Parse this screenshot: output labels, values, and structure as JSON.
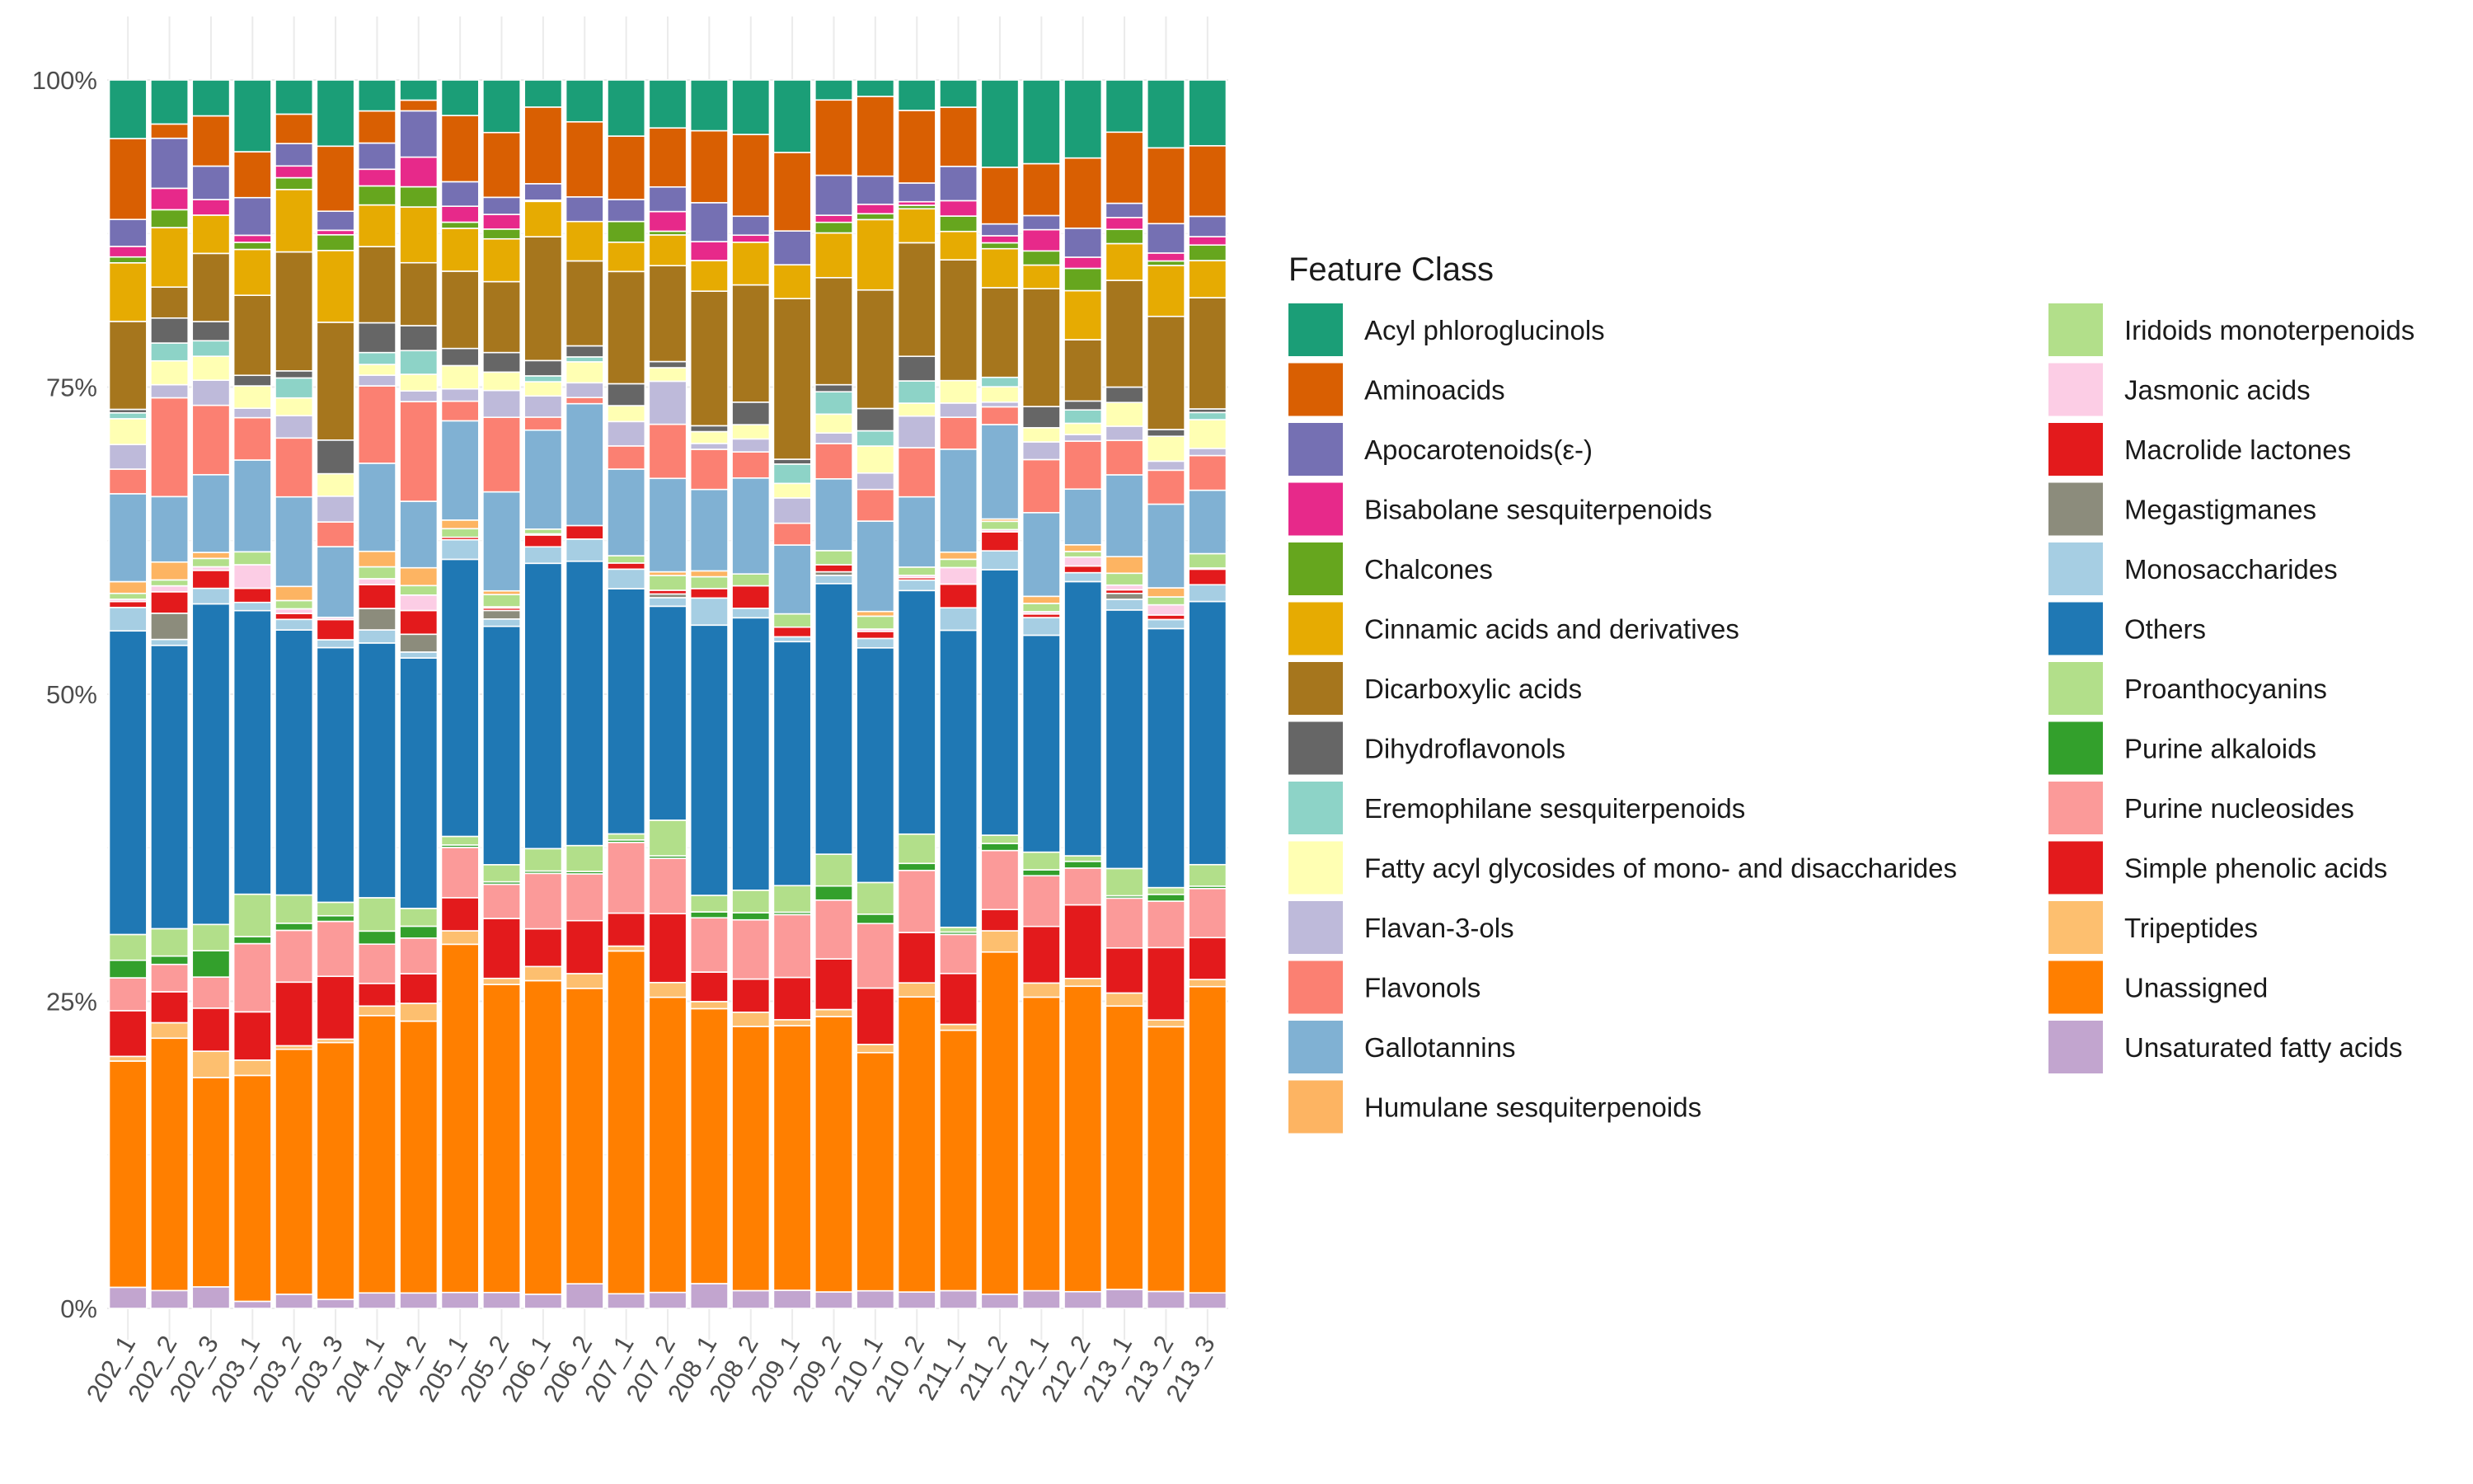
{
  "chart_data": {
    "type": "bar",
    "stacked": true,
    "normalized": true,
    "title": "",
    "xlabel": "",
    "ylabel": "",
    "ylim": [
      0,
      100
    ],
    "y_ticks": [
      "0%",
      "25%",
      "50%",
      "75%",
      "100%"
    ],
    "grid": true,
    "legend_title": "Feature Class",
    "legend_position": "right",
    "categories": [
      "202_1",
      "202_2",
      "202_3",
      "203_1",
      "203_2",
      "203_3",
      "204_1",
      "204_2",
      "205_1",
      "205_2",
      "206_1",
      "206_2",
      "207_1",
      "207_2",
      "208_1",
      "208_2",
      "209_1",
      "209_2",
      "210_1",
      "210_2",
      "211_1",
      "211_2",
      "212_1",
      "212_2",
      "213_1",
      "213_2",
      "213_3"
    ],
    "series": [
      {
        "name": "Unsaturated fatty acids",
        "color": "#c2a5cf",
        "values": [
          1.8,
          1.5,
          1.8,
          0.6,
          1.2,
          0.8,
          1.3,
          1.3,
          1.3,
          1.3,
          1.2,
          2.0,
          1.2,
          1.3,
          2.1,
          1.5,
          1.5,
          1.4,
          1.5,
          1.4,
          1.5,
          1.2,
          1.5,
          1.5,
          1.6,
          1.5,
          1.3
        ]
      },
      {
        "name": "Unassigned",
        "color": "#ff7f00",
        "values": [
          19.3,
          21.2,
          17.5,
          19.2,
          20.8,
          22.9,
          23.3,
          22.9,
          28.4,
          25.2,
          26.6,
          24.0,
          28.1,
          24.0,
          23.3,
          22.3,
          21.9,
          23.4,
          20.3,
          25.2,
          22.0,
          29.0,
          24.9,
          27.4,
          23.9,
          23.4,
          25.6
        ]
      },
      {
        "name": "Tripeptides",
        "color": "#fdbf6f",
        "values": [
          0.4,
          1.3,
          2.2,
          1.3,
          0.3,
          0.3,
          0.8,
          1.5,
          1.1,
          0.5,
          1.2,
          1.2,
          0.4,
          1.2,
          0.6,
          1.2,
          0.5,
          0.6,
          0.7,
          1.2,
          0.5,
          1.8,
          1.2,
          0.7,
          1.1,
          0.6,
          0.6
        ]
      },
      {
        "name": "Simple phenolic acids",
        "color": "#e31a1c",
        "values": [
          3.9,
          2.6,
          3.6,
          4.1,
          5.4,
          5.6,
          1.9,
          2.5,
          2.7,
          4.9,
          3.2,
          4.3,
          2.7,
          5.6,
          2.5,
          2.8,
          3.5,
          4.3,
          4.8,
          4.3,
          4.3,
          1.8,
          4.8,
          6.6,
          3.8,
          6.4,
          3.5
        ]
      },
      {
        "name": "Purine nucleosides",
        "color": "#fb9a99",
        "values": [
          2.8,
          2.3,
          2.6,
          5.8,
          4.4,
          4.9,
          3.3,
          3.0,
          4.1,
          2.8,
          4.7,
          3.8,
          5.8,
          4.5,
          4.6,
          5.0,
          5.2,
          5.0,
          5.5,
          5.3,
          3.3,
          5.0,
          4.3,
          3.3,
          4.2,
          4.1,
          4.1
        ]
      },
      {
        "name": "Purine alkaloids",
        "color": "#33a02c",
        "values": [
          1.5,
          0.7,
          2.2,
          0.6,
          0.6,
          0.5,
          1.1,
          1.0,
          0.2,
          0.2,
          0.2,
          0.2,
          0.2,
          0.2,
          0.5,
          0.6,
          0.2,
          1.2,
          0.8,
          0.6,
          0.2,
          0.6,
          0.5,
          0.6,
          0.2,
          0.6,
          0.2
        ]
      },
      {
        "name": "Proanthocyanins",
        "color": "#b2df8a",
        "values": [
          2.2,
          2.3,
          2.2,
          3.6,
          2.4,
          1.2,
          2.8,
          1.5,
          0.7,
          1.4,
          1.9,
          2.1,
          0.5,
          2.9,
          1.4,
          1.9,
          2.2,
          2.7,
          2.7,
          2.5,
          0.4,
          0.7,
          1.5,
          0.5,
          2.3,
          0.6,
          1.8
        ]
      },
      {
        "name": "Others",
        "color": "#1f78b4",
        "values": [
          25.9,
          23.8,
          26.8,
          24.1,
          22.5,
          22.7,
          21.4,
          21.1,
          22.6,
          19.5,
          24.2,
          23.1,
          20.1,
          17.4,
          22.9,
          23.0,
          20.2,
          23.0,
          20.0,
          20.8,
          25.1,
          22.5,
          18.4,
          24.6,
          21.8,
          22.9,
          22.0
        ]
      },
      {
        "name": "Monosaccharides",
        "color": "#a6cee3",
        "values": [
          2.0,
          0.5,
          1.3,
          0.7,
          0.9,
          0.7,
          1.1,
          0.5,
          1.6,
          0.6,
          1.4,
          1.8,
          1.6,
          0.7,
          2.3,
          0.8,
          0.4,
          0.7,
          0.8,
          0.9,
          1.9,
          1.6,
          1.5,
          0.8,
          0.9,
          0.8,
          1.4
        ]
      },
      {
        "name": "Megastigmanes",
        "color": "#8c8c7c",
        "values": [
          0,
          2.2,
          0,
          0,
          0,
          0,
          1.8,
          1.5,
          0,
          0.7,
          0,
          0,
          0,
          0.3,
          0,
          0,
          0,
          0.3,
          0,
          0,
          0,
          0,
          0,
          0,
          0.5,
          0,
          0
        ]
      },
      {
        "name": "Macrolide lactones",
        "color": "#e31a1c",
        "values": [
          0.5,
          1.8,
          1.5,
          1.2,
          0.5,
          1.8,
          2.0,
          2.0,
          0.2,
          0.2,
          1.0,
          1.1,
          0.5,
          0.3,
          0.8,
          1.9,
          0.8,
          0.6,
          0.6,
          0.2,
          2.0,
          1.6,
          0.3,
          0.6,
          0.3,
          0.4,
          1.3
        ]
      },
      {
        "name": "Jasmonic acids",
        "color": "#fccde5",
        "values": [
          0.2,
          0.5,
          0.3,
          2.0,
          0.4,
          0.2,
          0.5,
          1.3,
          0,
          0.1,
          0.1,
          0,
          0,
          0,
          0,
          0,
          0,
          0,
          0.2,
          0.2,
          1.4,
          0.2,
          0.2,
          0.8,
          0.4,
          0.9,
          0.1
        ]
      },
      {
        "name": "Iridoids monoterpenoids",
        "color": "#b2df8a",
        "values": [
          0.5,
          0.5,
          0.7,
          1.1,
          0.7,
          0,
          1.0,
          0.8,
          0.7,
          1.0,
          0.4,
          0,
          0.6,
          1.2,
          1.0,
          1.0,
          1.1,
          1.2,
          1.1,
          0.7,
          0.7,
          0.7,
          0.7,
          0.5,
          1.0,
          0.7,
          1.2
        ]
      },
      {
        "name": "Humulane sesquiterpenoids",
        "color": "#fdb462",
        "values": [
          1.0,
          1.5,
          0.5,
          0,
          1.2,
          0,
          1.3,
          1.5,
          0.7,
          0.3,
          0,
          0,
          0,
          0.3,
          0.5,
          0,
          0,
          0,
          0.4,
          0,
          0.6,
          0.2,
          0.6,
          0.6,
          1.4,
          0.8,
          0
        ]
      },
      {
        "name": "Gallotannins",
        "color": "#80b1d3",
        "values": [
          7.5,
          5.5,
          6.5,
          7.8,
          7.6,
          6.3,
          7.4,
          5.6,
          8.1,
          8.1,
          8.4,
          9.9,
          7.1,
          7.6,
          6.9,
          8.1,
          5.7,
          6.1,
          7.7,
          6.0,
          8.7,
          8.0,
          7.1,
          5.0,
          6.9,
          7.4,
          5.3
        ]
      },
      {
        "name": "Flavonols",
        "color": "#fb8072",
        "values": [
          2.1,
          8.3,
          5.8,
          3.6,
          5.0,
          2.2,
          6.5,
          8.4,
          1.6,
          6.1,
          1.1,
          0.5,
          1.9,
          4.4,
          3.4,
          2.2,
          1.8,
          3.0,
          2.7,
          4.2,
          2.7,
          1.5,
          4.5,
          4.3,
          2.9,
          3.0,
          2.9
        ]
      },
      {
        "name": "Flavan-3-ols",
        "color": "#bebada",
        "values": [
          2.1,
          1.1,
          2.1,
          0.8,
          1.9,
          2.3,
          0.9,
          0.9,
          1.0,
          2.2,
          1.8,
          1.2,
          2.0,
          3.5,
          0.5,
          1.1,
          2.1,
          0.9,
          1.4,
          2.7,
          1.2,
          0.4,
          1.5,
          0.6,
          1.2,
          0.8,
          0.6
        ]
      },
      {
        "name": "Fatty acyl glycosides of mono- and disaccharides",
        "color": "#ffffb3",
        "values": [
          2.2,
          2.0,
          2.0,
          1.9,
          1.5,
          2.0,
          0.9,
          1.4,
          1.9,
          1.5,
          1.2,
          1.7,
          1.3,
          1.1,
          1.0,
          1.2,
          1.2,
          1.6,
          2.3,
          1.1,
          1.9,
          1.3,
          1.2,
          1.0,
          2.0,
          2.2,
          2.4
        ]
      },
      {
        "name": "Eremophilane sesquiterpenoids",
        "color": "#8dd3c7",
        "values": [
          0.5,
          1.5,
          1.3,
          0,
          1.7,
          0,
          1.0,
          2.0,
          0,
          0,
          0.5,
          0.4,
          0,
          0,
          0,
          0,
          1.6,
          1.9,
          1.3,
          1.9,
          0,
          0.8,
          0,
          1.2,
          0,
          0,
          0.6
        ]
      },
      {
        "name": "Dihydroflavonols",
        "color": "#666666",
        "values": [
          0.3,
          2.1,
          1.6,
          0.9,
          0.6,
          3.0,
          2.5,
          2.1,
          1.4,
          1.6,
          1.3,
          0.9,
          1.8,
          0.5,
          0.5,
          1.9,
          0.4,
          0.6,
          1.9,
          2.1,
          0,
          0,
          1.8,
          0.8,
          1.3,
          0.6,
          0.3
        ]
      },
      {
        "name": "Dicarboxylic acids",
        "color": "#a6761d",
        "values": [
          7.5,
          2.6,
          5.7,
          6.8,
          10.1,
          10.5,
          6.4,
          5.3,
          6.3,
          5.8,
          10.5,
          6.9,
          9.2,
          7.8,
          11.4,
          9.9,
          13.3,
          9.1,
          10.1,
          9.7,
          10.2,
          7.6,
          10.0,
          5.5,
          9.0,
          10.0,
          9.3
        ]
      },
      {
        "name": "Cinnamic acids and derivatives",
        "color": "#e6ab02",
        "values": [
          5.0,
          5.0,
          3.2,
          3.9,
          5.3,
          6.4,
          3.5,
          4.7,
          3.5,
          3.5,
          3.0,
          3.2,
          2.4,
          2.5,
          2.6,
          3.6,
          2.8,
          3.8,
          6.0,
          2.9,
          2.4,
          3.3,
          2.0,
          4.4,
          3.1,
          4.5,
          3.1
        ]
      },
      {
        "name": "Chalcones",
        "color": "#66a61e",
        "values": [
          0.5,
          1.5,
          0,
          0.6,
          1.0,
          1.4,
          1.6,
          1.7,
          0.5,
          0.8,
          0,
          0,
          1.7,
          0.3,
          0,
          0,
          0,
          0.9,
          0.5,
          0.3,
          1.3,
          0.5,
          1.2,
          2.0,
          1.2,
          0.4,
          1.3
        ]
      },
      {
        "name": "Bisabolane sesquiterpenoids",
        "color": "#e7298a",
        "values": [
          0.9,
          1.8,
          1.3,
          0.6,
          1.0,
          0.4,
          1.4,
          2.5,
          1.3,
          1.2,
          0.1,
          0,
          0,
          1.6,
          1.6,
          0.6,
          0,
          0.6,
          0.8,
          0.3,
          1.3,
          0.6,
          1.8,
          1.0,
          1.0,
          0.7,
          0.7
        ]
      },
      {
        "name": "Apocarotenoids(ε-)",
        "color": "#7570b3",
        "values": [
          2.3,
          4.2,
          2.8,
          3.2,
          1.9,
          1.7,
          2.2,
          3.9,
          2.0,
          1.4,
          1.4,
          2.0,
          1.8,
          2.0,
          3.3,
          1.6,
          2.8,
          3.4,
          2.4,
          1.6,
          2.9,
          1.0,
          1.2,
          2.6,
          1.2,
          2.6,
          1.7
        ]
      },
      {
        "name": "Aminoacids",
        "color": "#d95f02",
        "values": [
          6.9,
          1.2,
          4.2,
          3.9,
          2.5,
          5.8,
          2.7,
          0.9,
          5.4,
          5.3,
          6.5,
          6.1,
          5.2,
          4.8,
          6.1,
          6.9,
          6.5,
          6.4,
          6.8,
          6.2,
          5.0,
          4.8,
          4.4,
          6.3,
          6.0,
          6.7,
          5.9
        ]
      },
      {
        "name": "Acyl phloroglucinols",
        "color": "#1b9e77",
        "values": [
          5.0,
          3.7,
          3.0,
          6.1,
          2.9,
          5.9,
          2.6,
          1.7,
          2.9,
          4.3,
          2.3,
          3.4,
          4.6,
          3.9,
          4.3,
          4.6,
          6.0,
          1.7,
          1.4,
          2.6,
          2.3,
          7.4,
          7.1,
          7.0,
          4.4,
          6.0,
          5.5
        ]
      }
    ]
  }
}
